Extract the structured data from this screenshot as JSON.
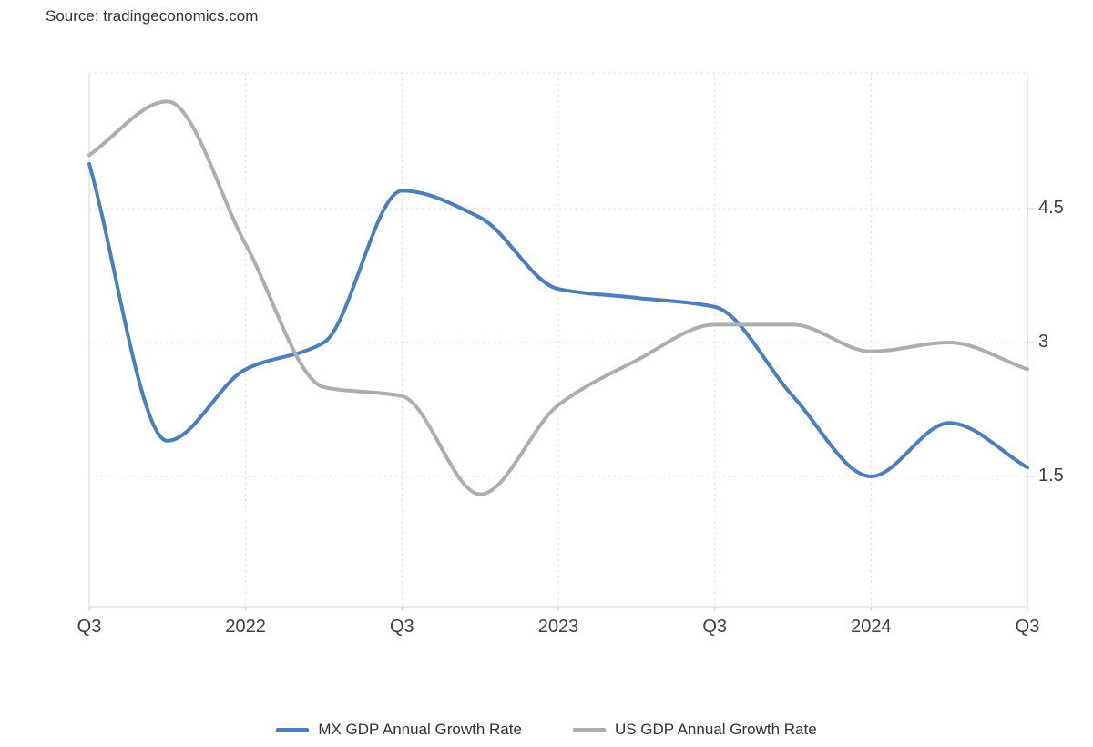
{
  "source_text": "Source: tradingeconomics.com",
  "colors": {
    "mx_line": "#4a7ebc",
    "us_line": "#adadad",
    "grid_dots": "#d9d9d9",
    "plot_border": "#e3e3e3",
    "tick": "#cccccc",
    "axis_label_text": "#404040",
    "text": "#333333",
    "background": "#ffffff"
  },
  "chart_data": {
    "type": "line",
    "title": "",
    "xlabel": "",
    "ylabel": "",
    "grid": "dotted",
    "legend_position": "bottom",
    "ylim": [
      0,
      6
    ],
    "x_quarters": [
      "Q3 2021",
      "Q4 2021",
      "Q1 2022",
      "Q2 2022",
      "Q3 2022",
      "Q4 2022",
      "Q1 2023",
      "Q2 2023",
      "Q3 2023",
      "Q4 2023",
      "Q1 2024",
      "Q2 2024",
      "Q3 2024"
    ],
    "x_ticks": [
      {
        "label": "Q3",
        "q": 0
      },
      {
        "label": "2022",
        "q": 2
      },
      {
        "label": "Q3",
        "q": 4
      },
      {
        "label": "2023",
        "q": 6
      },
      {
        "label": "Q3",
        "q": 8
      },
      {
        "label": "2024",
        "q": 10
      },
      {
        "label": "Q3",
        "q": 12
      }
    ],
    "y_ticks": [
      {
        "label": "4.5",
        "value": 4.5
      },
      {
        "label": "3",
        "value": 3
      },
      {
        "label": "1.5",
        "value": 1.5
      }
    ],
    "series": [
      {
        "name": "MX GDP Annual Growth Rate",
        "color": "#4a7ebc",
        "values": [
          5.0,
          1.9,
          2.7,
          3.0,
          4.7,
          4.4,
          3.6,
          3.5,
          3.4,
          2.4,
          1.5,
          2.1,
          1.6
        ]
      },
      {
        "name": "US GDP Annual Growth Rate",
        "color": "#adadad",
        "values": [
          5.1,
          5.7,
          4.1,
          2.5,
          2.4,
          1.3,
          2.3,
          2.8,
          3.2,
          3.2,
          2.9,
          3.0,
          2.7
        ]
      }
    ]
  }
}
